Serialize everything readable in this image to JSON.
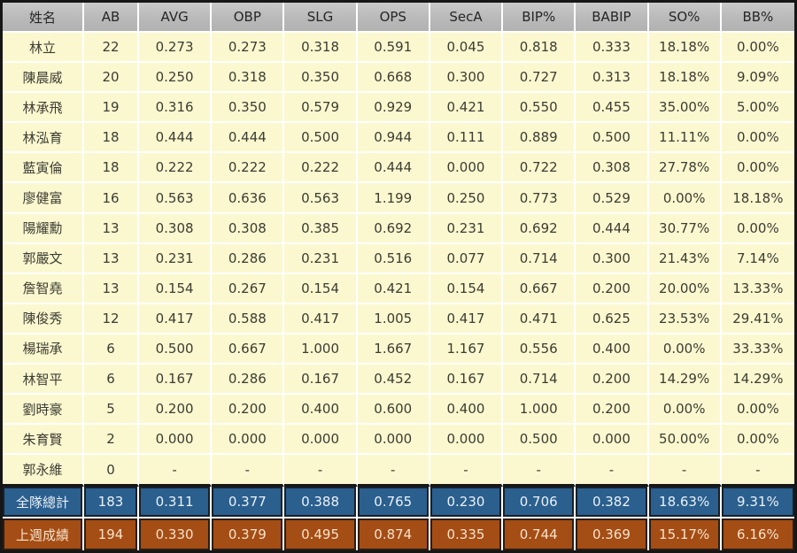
{
  "chart_data": {
    "type": "table",
    "title": "",
    "columns": [
      "姓名",
      "AB",
      "AVG",
      "OBP",
      "SLG",
      "OPS",
      "SecA",
      "BIP%",
      "BABIP",
      "SO%",
      "BB%"
    ],
    "rows": [
      [
        "林立",
        "22",
        "0.273",
        "0.273",
        "0.318",
        "0.591",
        "0.045",
        "0.818",
        "0.333",
        "18.18%",
        "0.00%"
      ],
      [
        "陳晨威",
        "20",
        "0.250",
        "0.318",
        "0.350",
        "0.668",
        "0.300",
        "0.727",
        "0.313",
        "18.18%",
        "9.09%"
      ],
      [
        "林承飛",
        "19",
        "0.316",
        "0.350",
        "0.579",
        "0.929",
        "0.421",
        "0.550",
        "0.455",
        "35.00%",
        "5.00%"
      ],
      [
        "林泓育",
        "18",
        "0.444",
        "0.444",
        "0.500",
        "0.944",
        "0.111",
        "0.889",
        "0.500",
        "11.11%",
        "0.00%"
      ],
      [
        "藍寅倫",
        "18",
        "0.222",
        "0.222",
        "0.222",
        "0.444",
        "0.000",
        "0.722",
        "0.308",
        "27.78%",
        "0.00%"
      ],
      [
        "廖健富",
        "16",
        "0.563",
        "0.636",
        "0.563",
        "1.199",
        "0.250",
        "0.773",
        "0.529",
        "0.00%",
        "18.18%"
      ],
      [
        "陽耀勳",
        "13",
        "0.308",
        "0.308",
        "0.385",
        "0.692",
        "0.231",
        "0.692",
        "0.444",
        "30.77%",
        "0.00%"
      ],
      [
        "郭嚴文",
        "13",
        "0.231",
        "0.286",
        "0.231",
        "0.516",
        "0.077",
        "0.714",
        "0.300",
        "21.43%",
        "7.14%"
      ],
      [
        "詹智堯",
        "13",
        "0.154",
        "0.267",
        "0.154",
        "0.421",
        "0.154",
        "0.667",
        "0.200",
        "20.00%",
        "13.33%"
      ],
      [
        "陳俊秀",
        "12",
        "0.417",
        "0.588",
        "0.417",
        "1.005",
        "0.417",
        "0.471",
        "0.625",
        "23.53%",
        "29.41%"
      ],
      [
        "楊瑞承",
        "6",
        "0.500",
        "0.667",
        "1.000",
        "1.667",
        "1.167",
        "0.556",
        "0.400",
        "0.00%",
        "33.33%"
      ],
      [
        "林智平",
        "6",
        "0.167",
        "0.286",
        "0.167",
        "0.452",
        "0.167",
        "0.714",
        "0.200",
        "14.29%",
        "14.29%"
      ],
      [
        "劉時豪",
        "5",
        "0.200",
        "0.200",
        "0.400",
        "0.600",
        "0.400",
        "1.000",
        "0.200",
        "0.00%",
        "0.00%"
      ],
      [
        "朱育賢",
        "2",
        "0.000",
        "0.000",
        "0.000",
        "0.000",
        "0.000",
        "0.500",
        "0.000",
        "50.00%",
        "0.00%"
      ],
      [
        "郭永維",
        "0",
        "-",
        "-",
        "-",
        "-",
        "-",
        "-",
        "-",
        "-",
        "-"
      ]
    ],
    "team_total_row": [
      "全隊總計",
      "183",
      "0.311",
      "0.377",
      "0.388",
      "0.765",
      "0.230",
      "0.706",
      "0.382",
      "18.63%",
      "9.31%"
    ],
    "last_week_row": [
      "上週成績",
      "194",
      "0.330",
      "0.379",
      "0.495",
      "0.874",
      "0.335",
      "0.744",
      "0.369",
      "15.17%",
      "6.16%"
    ],
    "layout": {
      "grid": "on",
      "legend_position": "none"
    }
  },
  "colors": {
    "header_bg": "#BDBDBD",
    "header_text": "#262626",
    "row_bg": "#FBF8D0",
    "body_text": "#3C3C32",
    "grid_line": "#FFFFFF",
    "outer_border": "#161616",
    "team_total_bg": "#2A5F8E",
    "team_total_text": "#EAF1F8",
    "last_week_bg": "#A44D15",
    "last_week_text": "#F8E2C9"
  }
}
